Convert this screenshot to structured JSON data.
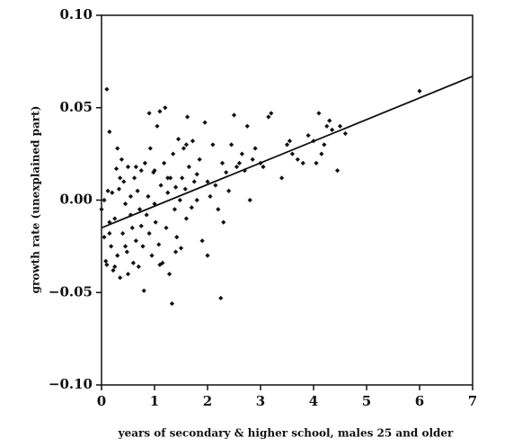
{
  "chart_data": {
    "type": "scatter",
    "x_label": "years of secondary & higher school, males 25 and older",
    "y_label": "growth rate (unexplained part)",
    "color": "#111111",
    "xlim": [
      0,
      7
    ],
    "ylim": [
      -0.1,
      0.1
    ],
    "xticks": [
      0,
      1,
      2,
      3,
      4,
      5,
      6,
      7
    ],
    "yticks": [
      {
        "value": -0.1,
        "label": "−0.10"
      },
      {
        "value": -0.05,
        "label": "−0.05"
      },
      {
        "value": 0,
        "label": "0.00"
      },
      {
        "value": 0.05,
        "label": "0.05"
      },
      {
        "value": 0.1,
        "label": "0.10"
      }
    ],
    "x": [
      0.1,
      0.15,
      0,
      0.05,
      0.08,
      0.1,
      0.12,
      0.15,
      0.18,
      0.2,
      0.22,
      0.25,
      0.28,
      0.3,
      0.3,
      0.33,
      0.35,
      0.38,
      0.4,
      0.42,
      0.45,
      0.48,
      0.5,
      0.5,
      0.55,
      0.58,
      0.6,
      0.62,
      0.65,
      0.68,
      0.7,
      0.72,
      0.75,
      0.78,
      0.8,
      0.82,
      0.85,
      0.88,
      0.9,
      0.92,
      0.95,
      0.98,
      0.9,
      1,
      1.02,
      1.05,
      1.08,
      1.1,
      1.12,
      1.15,
      1.18,
      1.2,
      1.22,
      1.25,
      1.28,
      1.3,
      1.33,
      1.35,
      1.38,
      1.4,
      1.42,
      1.45,
      1.48,
      1.5,
      1.52,
      1.55,
      1.58,
      1.6,
      1.62,
      1.65,
      1.7,
      1.72,
      1.75,
      1.8,
      1.85,
      1.9,
      1.95,
      2,
      2,
      2.05,
      2.1,
      2.15,
      2.2,
      2.25,
      2.28,
      2.3,
      2.35,
      2.4,
      2.45,
      2.5,
      2.55,
      2.6,
      2.65,
      2.7,
      2.75,
      2.8,
      2.85,
      2.9,
      3,
      3.05,
      3.15,
      3.2,
      3.4,
      3.5,
      3.55,
      3.6,
      3.7,
      3.8,
      3.9,
      4,
      4.05,
      4.1,
      4.15,
      4.2,
      4.25,
      4.3,
      4.35,
      4.45,
      4.5,
      4.6,
      6,
      0.05,
      0.15,
      0.25,
      0.35,
      0.45,
      0.55,
      0.65,
      0.75,
      1,
      1.1,
      1.25,
      1.4,
      1.6,
      1.8
    ],
    "values": [
      0.06,
      0.037,
      -0.005,
      -0.02,
      -0.033,
      -0.035,
      0.005,
      -0.012,
      -0.025,
      0.004,
      -0.038,
      -0.01,
      0.017,
      0.028,
      -0.03,
      0.006,
      -0.042,
      0.022,
      -0.018,
      0.01,
      -0.002,
      -0.028,
      0.018,
      -0.04,
      0.002,
      -0.015,
      -0.034,
      0.012,
      -0.022,
      0.005,
      -0.036,
      -0.005,
      0.016,
      -0.025,
      -0.049,
      0.02,
      -0.008,
      0.002,
      -0.018,
      0.028,
      -0.03,
      0.015,
      0.047,
      -0.002,
      -0.012,
      0.04,
      -0.024,
      0.048,
      0.008,
      -0.034,
      0.02,
      0.05,
      -0.015,
      0.004,
      -0.04,
      0.012,
      -0.056,
      0.025,
      -0.005,
      0.007,
      -0.02,
      0.033,
      0,
      -0.026,
      0.012,
      0.028,
      0.006,
      -0.01,
      0.045,
      0.018,
      -0.004,
      0.032,
      0.01,
      0,
      0.022,
      -0.022,
      0.042,
      0.01,
      -0.03,
      0.002,
      0.03,
      0.008,
      -0.005,
      -0.053,
      0.02,
      -0.012,
      0.015,
      0.005,
      0.03,
      0.046,
      0.018,
      0.02,
      0.025,
      0.016,
      0.04,
      0,
      0.022,
      0.028,
      0.02,
      0.018,
      0.045,
      0.047,
      0.012,
      0.03,
      0.032,
      0.025,
      0.022,
      0.02,
      0.035,
      0.032,
      0.02,
      0.047,
      0.025,
      0.03,
      0.04,
      0.043,
      0.038,
      0.016,
      0.04,
      0.036,
      0.059,
      0,
      -0.018,
      -0.036,
      0.012,
      -0.025,
      -0.008,
      0.018,
      -0.014,
      0.016,
      -0.035,
      0.012,
      -0.028,
      0.03,
      0.014
    ],
    "fit_line": {
      "x": [
        0,
        7
      ],
      "values": [
        -0.015,
        0.067
      ]
    }
  }
}
